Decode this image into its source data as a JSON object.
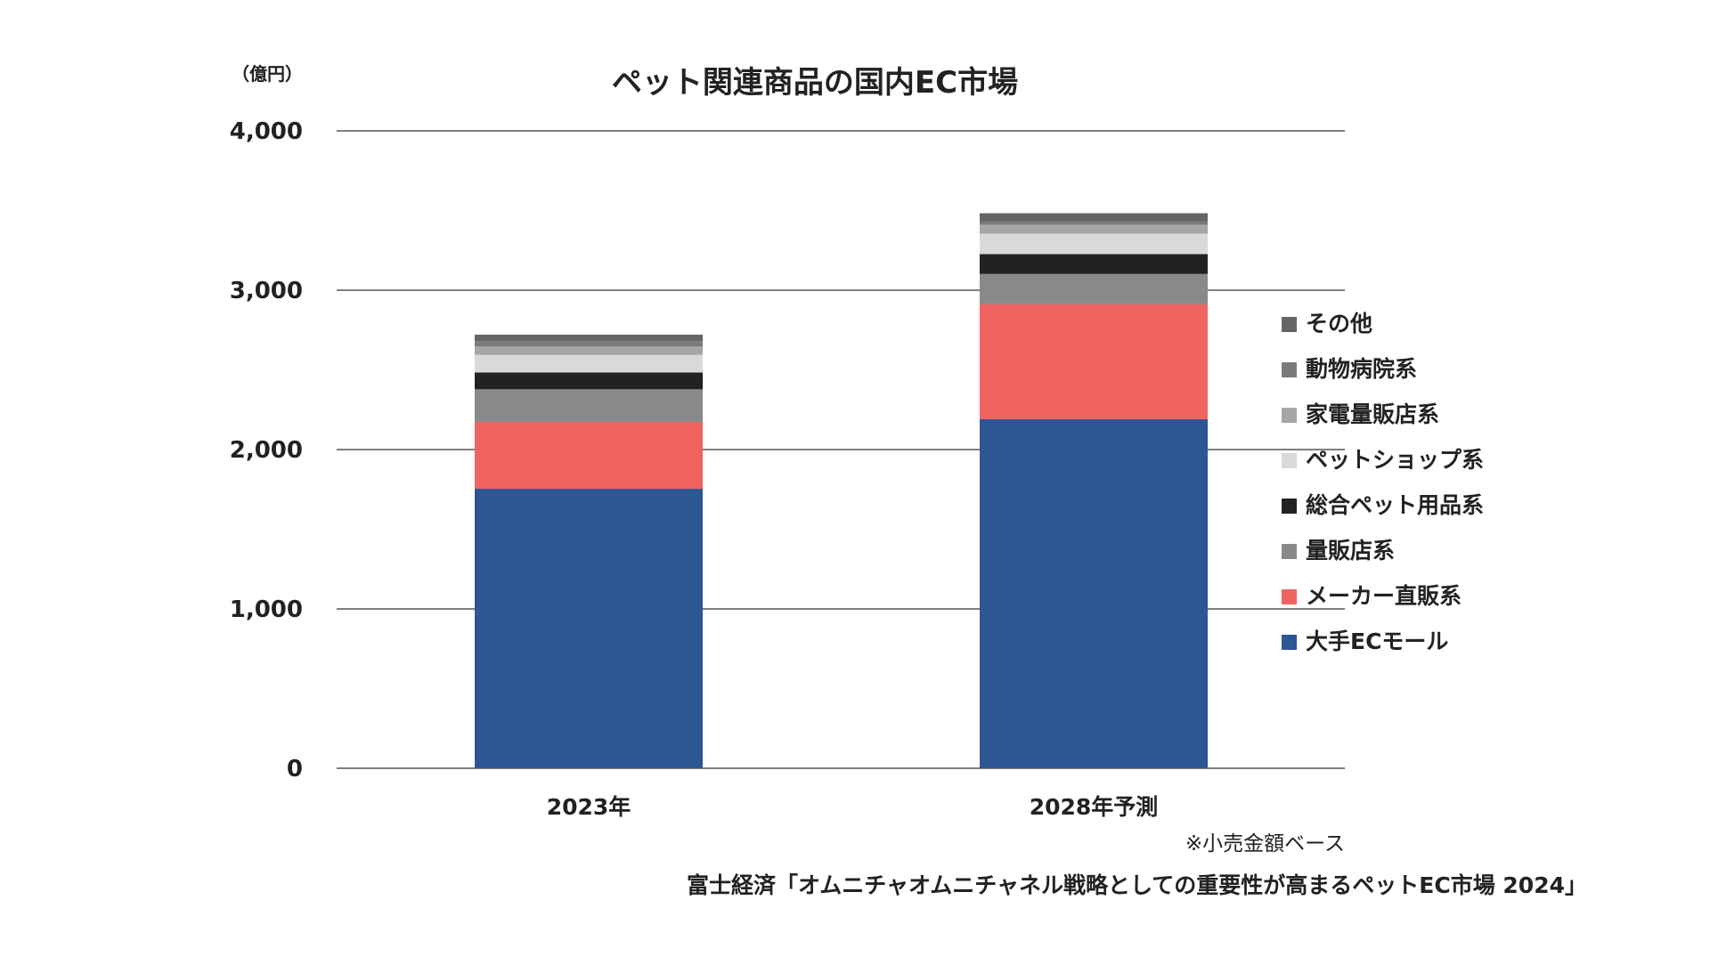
{
  "chart_data": {
    "type": "bar",
    "stacked": true,
    "title": "ペット関連商品の国内EC市場",
    "unit_label": "（億円）",
    "categories": [
      "2023年",
      "2028年予測"
    ],
    "ylim": [
      0,
      4000
    ],
    "yticks": [
      0,
      1000,
      2000,
      3000,
      4000
    ],
    "ytick_labels": [
      "0",
      "1,000",
      "2,000",
      "3,000",
      "4,000"
    ],
    "grid": true,
    "legend_position": "right",
    "series": [
      {
        "name": "大手ECモール",
        "color": "#2e5594",
        "values": [
          1754,
          2190
        ]
      },
      {
        "name": "メーカー直販系",
        "color": "#ef6461",
        "values": [
          419,
          722
        ]
      },
      {
        "name": "量販店系",
        "color": "#898989",
        "values": [
          205,
          190
        ]
      },
      {
        "name": "総合ペット用品系",
        "color": "#222222",
        "values": [
          106,
          125
        ]
      },
      {
        "name": "ペットショップ系",
        "color": "#d9d9d9",
        "values": [
          110,
          128
        ]
      },
      {
        "name": "家電量販店系",
        "color": "#a6a6a6",
        "values": [
          54,
          56
        ]
      },
      {
        "name": "動物病院系",
        "color": "#7a7a7a",
        "values": [
          32,
          22
        ]
      },
      {
        "name": "その他",
        "color": "#646464",
        "values": [
          41,
          50
        ]
      }
    ],
    "note": "※小売金額ベース",
    "source": "富士経済「オムニチャオムニチャネル戦略としての重要性が高まるペットEC市場 2024」"
  }
}
